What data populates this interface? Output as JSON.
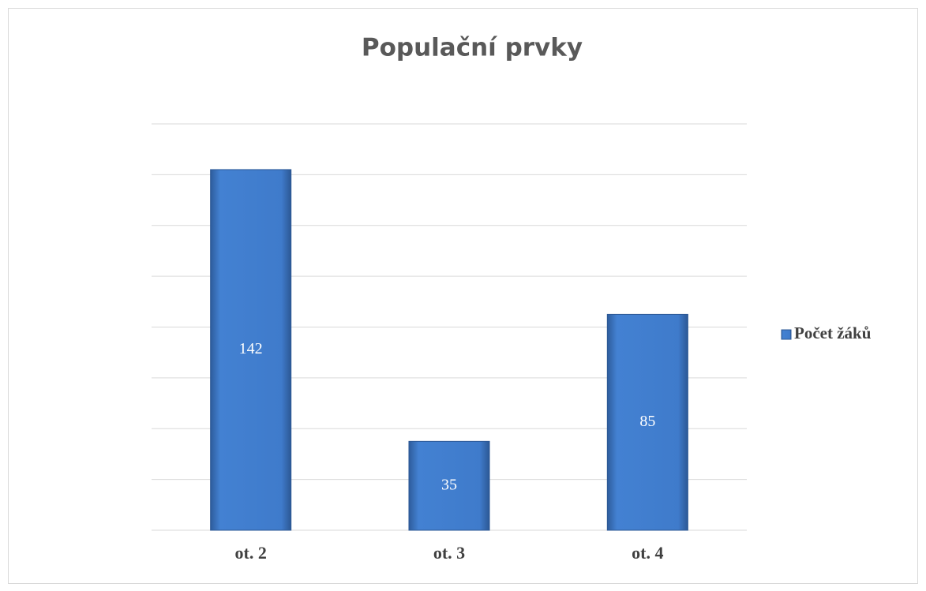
{
  "chart_data": {
    "type": "bar",
    "title": "Populační prvky",
    "categories": [
      "ot. 2",
      "ot. 3",
      "ot. 4"
    ],
    "series": [
      {
        "name": "Počet žáků",
        "color": "#3f78c6",
        "values": [
          142,
          35,
          85
        ]
      }
    ],
    "ylim": [
      0,
      160
    ],
    "yticks": [
      0,
      20,
      40,
      60,
      80,
      100,
      120,
      140,
      160
    ],
    "grid": true,
    "legend": "right",
    "data_labels": true
  }
}
